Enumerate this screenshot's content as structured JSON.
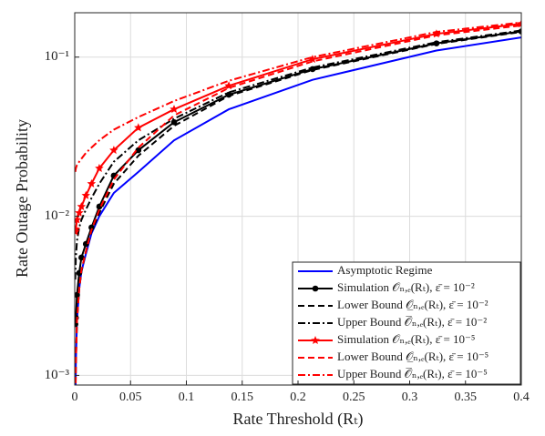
{
  "chart_data": {
    "type": "line",
    "xlabel": "Rate Threshold (Rₜ)",
    "ylabel": "Rate Outage Probability",
    "x": [
      0.0005,
      0.001,
      0.002,
      0.004,
      0.006,
      0.01,
      0.015,
      0.022,
      0.035,
      0.057,
      0.089,
      0.138,
      0.213,
      0.324,
      0.4
    ],
    "xlim": [
      0,
      0.4
    ],
    "xticks": [
      0,
      0.05,
      0.1,
      0.15,
      0.2,
      0.25,
      0.3,
      0.35,
      0.4
    ],
    "ylim": [
      0.00087,
      0.19
    ],
    "yscale": "log",
    "yticks": [
      {
        "value": 0.001,
        "label": "10⁻³"
      },
      {
        "value": 0.01,
        "label": "10⁻²"
      },
      {
        "value": 0.1,
        "label": "10⁻¹"
      }
    ],
    "grid": true,
    "legend": "lower right",
    "series": [
      {
        "name": "Asymptotic Regime",
        "color": "#0000ff",
        "linestyle": "solid",
        "marker": "none",
        "values": [
          0.0005,
          0.0012,
          0.0022,
          0.0035,
          0.0045,
          0.0058,
          0.0078,
          0.01,
          0.014,
          0.019,
          0.03,
          0.047,
          0.072,
          0.11,
          0.133
        ]
      },
      {
        "name": "Simulation 𝒪ₙ,ₑ(Rₜ), ε̄ = 10⁻²",
        "color": "#000000",
        "linestyle": "solid",
        "marker": "circle",
        "values": [
          0.0021,
          0.0023,
          0.0032,
          0.0044,
          0.0055,
          0.0067,
          0.0085,
          0.0115,
          0.018,
          0.026,
          0.039,
          0.058,
          0.084,
          0.122,
          0.145
        ]
      },
      {
        "name": "Lower Bound 𝒪̲ₙ,ₑ(Rₜ), ε̄ = 10⁻²",
        "color": "#000000",
        "linestyle": "dashed",
        "marker": "none",
        "values": [
          0.0005,
          0.0012,
          0.0022,
          0.0035,
          0.0045,
          0.006,
          0.008,
          0.0105,
          0.016,
          0.024,
          0.037,
          0.057,
          0.083,
          0.121,
          0.144
        ]
      },
      {
        "name": "Upper Bound 𝒪̅ₙ,ₑ(Rₜ), ε̄ = 10⁻²",
        "color": "#000000",
        "linestyle": "dashdot",
        "marker": "none",
        "values": [
          0.004,
          0.0055,
          0.007,
          0.0085,
          0.0095,
          0.011,
          0.013,
          0.016,
          0.022,
          0.03,
          0.041,
          0.06,
          0.086,
          0.124,
          0.147
        ]
      },
      {
        "name": "Simulation 𝒪ₙ,ₑ(Rₜ), ε̄ = 10⁻⁵",
        "color": "#ff0000",
        "linestyle": "solid",
        "marker": "star",
        "values": [
          0.008,
          0.0083,
          0.0095,
          0.0105,
          0.0115,
          0.0135,
          0.016,
          0.02,
          0.026,
          0.036,
          0.047,
          0.066,
          0.097,
          0.14,
          0.162
        ]
      },
      {
        "name": "Lower Bound 𝒪̲ₙ,ₑ(Rₜ), ε̄ = 10⁻⁵",
        "color": "#ff0000",
        "linestyle": "dashed",
        "marker": "none",
        "values": [
          0.0005,
          0.0012,
          0.0022,
          0.0035,
          0.0046,
          0.006,
          0.0082,
          0.011,
          0.017,
          0.027,
          0.043,
          0.064,
          0.094,
          0.137,
          0.158
        ]
      },
      {
        "name": "Upper Bound 𝒪̅ₙ,ₑ(Rₜ), ε̄ = 10⁻⁵",
        "color": "#ff0000",
        "linestyle": "dashdot",
        "marker": "none",
        "values": [
          0.019,
          0.02,
          0.021,
          0.022,
          0.023,
          0.025,
          0.027,
          0.03,
          0.035,
          0.042,
          0.053,
          0.071,
          0.1,
          0.144,
          0.165
        ]
      }
    ]
  }
}
